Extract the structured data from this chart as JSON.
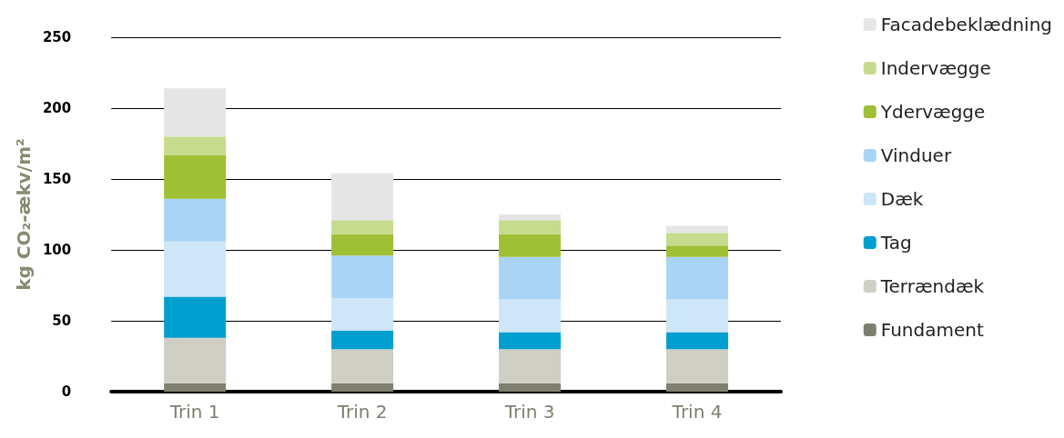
{
  "chart_data": {
    "type": "bar",
    "stacked": true,
    "ylabel": "kg CO₂-ækv/m²",
    "categories": [
      "Trin 1",
      "Trin 2",
      "Trin 3",
      "Trin 4"
    ],
    "series": [
      {
        "name": "Fundament",
        "color": "#7f7f6f",
        "values": [
          6,
          6,
          6,
          6
        ]
      },
      {
        "name": "Terrændæk",
        "color": "#cfcfc4",
        "values": [
          32,
          24,
          24,
          24
        ]
      },
      {
        "name": "Tag",
        "color": "#009fcf",
        "values": [
          29,
          13,
          12,
          12
        ]
      },
      {
        "name": "Dæk",
        "color": "#cde6f8",
        "values": [
          39,
          23,
          23,
          23
        ]
      },
      {
        "name": "Vinduer",
        "color": "#a9d4f5",
        "values": [
          30,
          30,
          30,
          30
        ]
      },
      {
        "name": "Ydervægge",
        "color": "#9fbf35",
        "values": [
          31,
          15,
          16,
          8
        ]
      },
      {
        "name": "Indervægge",
        "color": "#c7db8e",
        "values": [
          13,
          10,
          10,
          9
        ]
      },
      {
        "name": "Facadebeklædning",
        "color": "#e6e6e6",
        "values": [
          34,
          33,
          4,
          5
        ]
      }
    ],
    "ylim": [
      0,
      250
    ],
    "yticks": [
      0,
      50,
      100,
      150,
      200,
      250
    ],
    "grid": "y",
    "legend": "right"
  }
}
